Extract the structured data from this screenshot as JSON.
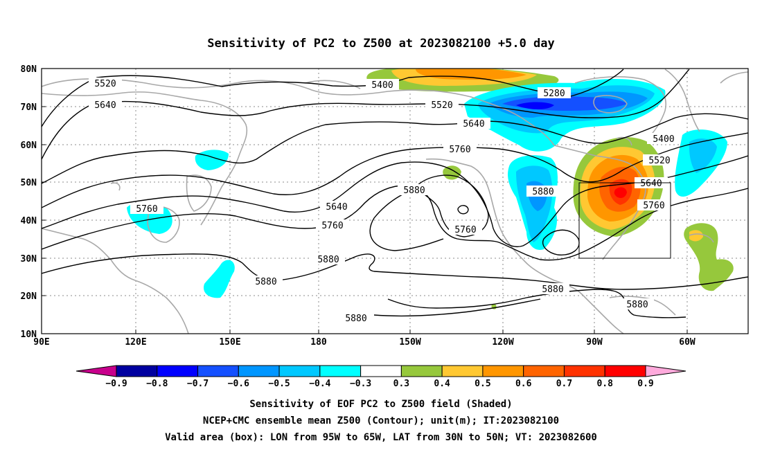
{
  "title": "Sensitivity of PC2 to Z500 at 2023082100 +5.0 day",
  "lat_labels": [
    "80N",
    "70N",
    "60N",
    "50N",
    "40N",
    "30N",
    "20N",
    "10N"
  ],
  "lon_labels": [
    "90E",
    "120E",
    "150E",
    "180",
    "150W",
    "120W",
    "90W",
    "60W"
  ],
  "contour_labels": {
    "c5520a": "5520",
    "c5640a": "5640",
    "c5400a": "5400",
    "c5280": "5280",
    "c5520b": "5520",
    "c5640b": "5640",
    "c5760a": "5760",
    "c5880a": "5880",
    "c5640c": "5640",
    "c5760b": "5760",
    "c5760c": "5760",
    "c5880b": "5880",
    "c5400b": "5400",
    "c5520c": "5520",
    "c5640d": "5640",
    "c5760d": "5760",
    "c5760e": "5760",
    "c5880c": "5880",
    "c5880d": "5880",
    "c5880e": "5880",
    "c5880f": "5880",
    "c5880g": "5880"
  },
  "colorbar": {
    "labels": [
      "−0.9",
      "−0.8",
      "−0.7",
      "−0.6",
      "−0.5",
      "−0.4",
      "−0.3",
      "0.3",
      "0.4",
      "0.5",
      "0.6",
      "0.7",
      "0.8",
      "0.9"
    ],
    "colors": [
      "#0000a0",
      "#0000ff",
      "#1450ff",
      "#0096ff",
      "#00c8ff",
      "#00ffff",
      "#ffffff",
      "#96c83c",
      "#ffc832",
      "#ff9600",
      "#ff6400",
      "#ff3200",
      "#ff0000"
    ],
    "left_arrow_color": "#c8008c",
    "right_arrow_color": "#ffaadc"
  },
  "captions": {
    "line1": "Sensitivity of EOF PC2 to Z500 field (Shaded)",
    "line2": "NCEP+CMC ensemble mean Z500 (Contour); unit(m); IT:2023082100",
    "line3": "Valid area (box): LON from 95W to 65W, LAT from 30N to 50N; VT: 2023082600"
  },
  "valid_box": {
    "lon_west": "95W",
    "lon_east": "65W",
    "lat_south": "30N",
    "lat_north": "50N"
  }
}
